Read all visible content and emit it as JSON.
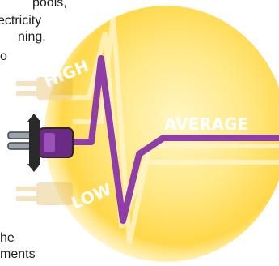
{
  "text": {
    "lines": [
      "pools,",
      "ectricity",
      "ning.",
      "o",
      "he",
      "ments"
    ]
  },
  "illustration": {
    "level_high": "HIGH",
    "level_average": "AVERAGE",
    "level_low": "LOW",
    "icons": [
      "electric-plug-icon",
      "voltage-waveform"
    ],
    "colors": {
      "glow": "#ffd84a",
      "wave": "#8e3ea6",
      "plug": "#6a2a86",
      "prong": "#9aa3ae"
    }
  }
}
